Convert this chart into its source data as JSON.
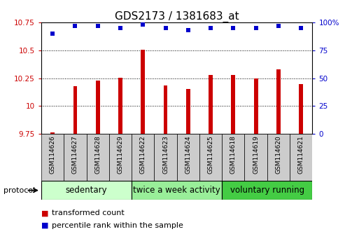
{
  "title": "GDS2173 / 1381683_at",
  "samples": [
    "GSM114626",
    "GSM114627",
    "GSM114628",
    "GSM114629",
    "GSM114622",
    "GSM114623",
    "GSM114624",
    "GSM114625",
    "GSM114618",
    "GSM114619",
    "GSM114620",
    "GSM114621"
  ],
  "red_values": [
    9.762,
    10.18,
    10.23,
    10.255,
    10.505,
    10.185,
    10.155,
    10.278,
    10.278,
    10.245,
    10.33,
    10.195
  ],
  "blue_values": [
    90,
    97,
    97,
    95,
    98,
    95,
    93,
    95,
    95,
    95,
    97,
    95
  ],
  "ylim_left": [
    9.75,
    10.75
  ],
  "ylim_right": [
    0,
    100
  ],
  "yticks_left": [
    9.75,
    10.0,
    10.25,
    10.5,
    10.75
  ],
  "ytick_labels_left": [
    "9.75",
    "10",
    "10.25",
    "10.5",
    "10.75"
  ],
  "yticks_right": [
    0,
    25,
    50,
    75,
    100
  ],
  "ytick_labels_right": [
    "0",
    "25",
    "50",
    "75",
    "100%"
  ],
  "groups": [
    {
      "label": "sedentary",
      "start": 0,
      "end": 4,
      "color": "#ccffcc"
    },
    {
      "label": "twice a week activity",
      "start": 4,
      "end": 8,
      "color": "#99ee99"
    },
    {
      "label": "voluntary running",
      "start": 8,
      "end": 12,
      "color": "#44cc44"
    }
  ],
  "bar_color": "#cc0000",
  "dot_color": "#0000cc",
  "bar_bottom": 9.75,
  "bar_width": 0.18,
  "dot_size": 25,
  "dot_marker": "s",
  "grid_color": "#000000",
  "sample_box_color": "#cccccc",
  "legend_red_label": "transformed count",
  "legend_blue_label": "percentile rank within the sample",
  "protocol_label": "protocol",
  "title_fontsize": 11,
  "axis_fontsize": 8,
  "tick_fontsize": 7.5,
  "legend_fontsize": 8,
  "group_fontsize": 8.5,
  "sample_fontsize": 6.5
}
